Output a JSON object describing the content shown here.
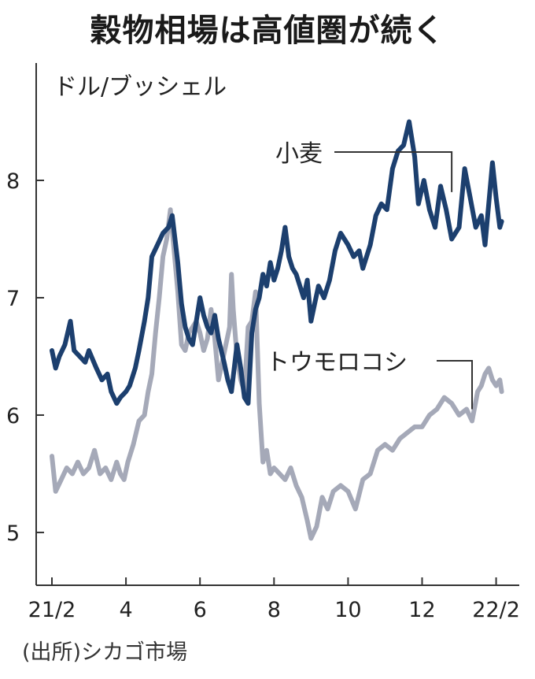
{
  "title": "穀物相場は高値圏が続く",
  "source": "(出所)シカゴ市場",
  "chart_data": {
    "type": "line",
    "title": "穀物相場は高値圏が続く",
    "ylabel": "ドル/ブッシェル",
    "xlabel": "",
    "ylim": [
      4.55,
      9.0
    ],
    "xlim": [
      0,
      12.2
    ],
    "x_ticks": [
      0,
      2,
      4,
      6,
      8,
      10,
      12
    ],
    "x_tick_labels": [
      "21/2",
      "4",
      "6",
      "8",
      "10",
      "12",
      "22/2"
    ],
    "y_ticks": [
      5,
      6,
      7,
      8
    ],
    "y_tick_labels": [
      "5",
      "6",
      "7",
      "8"
    ],
    "grid": false,
    "legend": "inline labels",
    "colors": {
      "wheat": "#1c3f6e",
      "corn": "#a5a9b8"
    },
    "series": [
      {
        "name": "小麦",
        "x": [
          0,
          0.1,
          0.2,
          0.35,
          0.5,
          0.6,
          0.75,
          0.9,
          1.0,
          1.2,
          1.35,
          1.5,
          1.6,
          1.75,
          1.85,
          2.0,
          2.1,
          2.25,
          2.35,
          2.5,
          2.6,
          2.7,
          2.85,
          3.0,
          3.15,
          3.25,
          3.4,
          3.5,
          3.6,
          3.7,
          3.8,
          3.9,
          4.0,
          4.1,
          4.2,
          4.3,
          4.4,
          4.5,
          4.65,
          4.75,
          4.85,
          5.0,
          5.1,
          5.2,
          5.3,
          5.4,
          5.5,
          5.6,
          5.7,
          5.8,
          5.9,
          6.0,
          6.1,
          6.2,
          6.3,
          6.4,
          6.5,
          6.6,
          6.7,
          6.8,
          6.9,
          7.0,
          7.1,
          7.2,
          7.35,
          7.5,
          7.65,
          7.8,
          8.0,
          8.15,
          8.3,
          8.4,
          8.5,
          8.6,
          8.75,
          8.9,
          9.05,
          9.2,
          9.35,
          9.5,
          9.65,
          9.8,
          9.9,
          10.05,
          10.2,
          10.35,
          10.5,
          10.65,
          10.8,
          11.0,
          11.15,
          11.3,
          11.45,
          11.6,
          11.7,
          11.8,
          11.9,
          12.0,
          12.1,
          12.15
        ],
        "values": [
          6.55,
          6.4,
          6.5,
          6.6,
          6.8,
          6.55,
          6.5,
          6.45,
          6.55,
          6.4,
          6.3,
          6.35,
          6.2,
          6.1,
          6.15,
          6.2,
          6.25,
          6.4,
          6.55,
          6.8,
          7.0,
          7.35,
          7.45,
          7.55,
          7.6,
          7.7,
          7.3,
          6.95,
          6.75,
          6.65,
          6.6,
          6.8,
          7.0,
          6.85,
          6.75,
          6.7,
          6.85,
          6.65,
          6.45,
          6.3,
          6.2,
          6.6,
          6.4,
          6.15,
          6.1,
          6.7,
          6.9,
          7.0,
          7.2,
          7.1,
          7.3,
          7.15,
          7.25,
          7.4,
          7.6,
          7.35,
          7.25,
          7.2,
          7.1,
          7.0,
          7.15,
          6.8,
          6.95,
          7.1,
          7.0,
          7.15,
          7.4,
          7.55,
          7.45,
          7.35,
          7.4,
          7.25,
          7.35,
          7.45,
          7.7,
          7.8,
          7.75,
          8.1,
          8.25,
          8.3,
          8.5,
          8.2,
          7.8,
          8.0,
          7.75,
          7.6,
          7.95,
          7.75,
          7.5,
          7.6,
          8.1,
          7.85,
          7.6,
          7.7,
          7.45,
          7.8,
          8.15,
          7.85,
          7.6,
          7.65
        ]
      },
      {
        "name": "トウモロコシ",
        "x": [
          0,
          0.1,
          0.25,
          0.4,
          0.55,
          0.7,
          0.85,
          1.0,
          1.15,
          1.3,
          1.45,
          1.6,
          1.75,
          1.85,
          1.95,
          2.05,
          2.2,
          2.35,
          2.5,
          2.6,
          2.7,
          2.8,
          2.9,
          3.0,
          3.1,
          3.2,
          3.3,
          3.4,
          3.5,
          3.6,
          3.7,
          3.8,
          3.9,
          4.0,
          4.1,
          4.2,
          4.3,
          4.4,
          4.5,
          4.6,
          4.7,
          4.8,
          4.85,
          4.9,
          5.0,
          5.1,
          5.2,
          5.3,
          5.4,
          5.5,
          5.6,
          5.7,
          5.8,
          5.9,
          6.0,
          6.15,
          6.3,
          6.45,
          6.6,
          6.75,
          6.9,
          7.0,
          7.15,
          7.3,
          7.45,
          7.6,
          7.8,
          8.0,
          8.2,
          8.4,
          8.6,
          8.8,
          9.0,
          9.2,
          9.4,
          9.6,
          9.8,
          10.0,
          10.2,
          10.4,
          10.6,
          10.8,
          11.0,
          11.2,
          11.35,
          11.5,
          11.6,
          11.7,
          11.8,
          11.9,
          12.0,
          12.1,
          12.15
        ],
        "values": [
          5.65,
          5.35,
          5.45,
          5.55,
          5.5,
          5.6,
          5.5,
          5.55,
          5.7,
          5.5,
          5.55,
          5.45,
          5.6,
          5.5,
          5.45,
          5.6,
          5.75,
          5.95,
          6.0,
          6.2,
          6.35,
          6.7,
          7.0,
          7.35,
          7.5,
          7.75,
          7.4,
          7.05,
          6.6,
          6.55,
          6.7,
          6.75,
          6.8,
          6.7,
          6.55,
          6.65,
          6.9,
          6.65,
          6.3,
          6.45,
          6.6,
          6.75,
          7.2,
          6.9,
          6.5,
          6.3,
          6.2,
          6.75,
          6.8,
          7.05,
          6.1,
          5.6,
          5.7,
          5.5,
          5.55,
          5.5,
          5.45,
          5.55,
          5.4,
          5.3,
          5.1,
          4.95,
          5.05,
          5.3,
          5.2,
          5.35,
          5.4,
          5.35,
          5.2,
          5.45,
          5.5,
          5.7,
          5.75,
          5.7,
          5.8,
          5.85,
          5.9,
          5.9,
          6.0,
          6.05,
          6.15,
          6.1,
          6.0,
          6.05,
          5.95,
          6.2,
          6.25,
          6.35,
          6.4,
          6.3,
          6.25,
          6.3,
          6.2
        ]
      }
    ]
  }
}
